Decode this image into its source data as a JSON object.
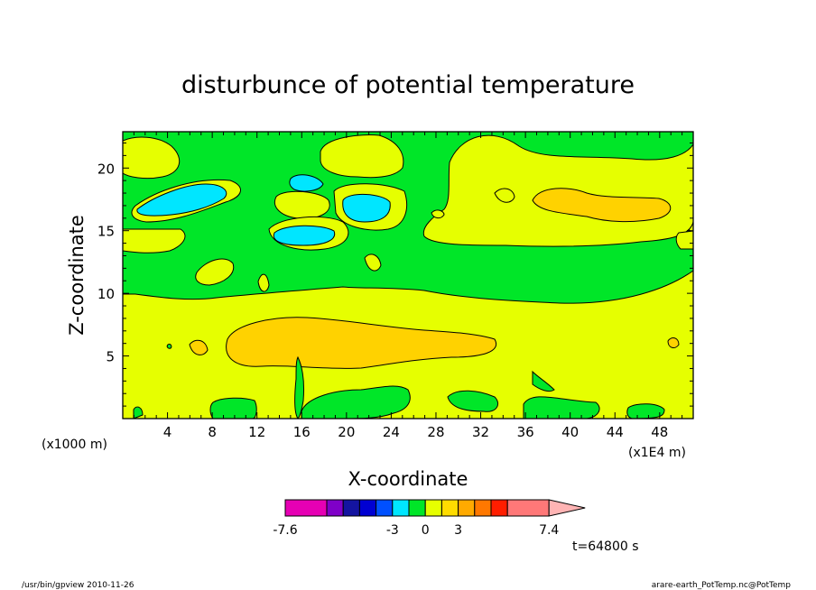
{
  "chart_data": {
    "type": "heatmap",
    "title": "disturbunce of potential temperature",
    "xlabel": "X-coordinate",
    "ylabel": "Z-coordinate",
    "x_unit": "(x1E4 m)",
    "y_unit": "(x1000 m)",
    "xlim": [
      0,
      51
    ],
    "ylim": [
      0,
      22.9
    ],
    "x_ticks": [
      4,
      8,
      12,
      16,
      20,
      24,
      28,
      32,
      36,
      40,
      44,
      48
    ],
    "y_ticks": [
      5,
      10,
      15,
      20
    ],
    "time_label": "t=64800 s",
    "colorbar": {
      "colors": [
        "#e600b4",
        "#7f00c8",
        "#1414a0",
        "#0000d2",
        "#0050ff",
        "#00e6ff",
        "#00e628",
        "#e6ff00",
        "#ffdc00",
        "#ffaa00",
        "#ff7800",
        "#ff1e00",
        "#ff7878",
        "#ffb4b4"
      ],
      "labels": [
        {
          "value": "-7.6",
          "index": 0
        },
        {
          "value": "-3",
          "index": 5
        },
        {
          "value": "0",
          "index": 7
        },
        {
          "value": "3",
          "index": 9
        },
        {
          "value": "7.4",
          "index": 13
        }
      ]
    },
    "regions": {
      "background": "#e6ff00",
      "green": "#00e628",
      "cyan": "#00e6ff",
      "orange": "#ffd200"
    }
  },
  "footer": {
    "left": "/usr/bin/gpview   2010-11-26",
    "right": "arare-earth_PotTemp.nc@PotTemp"
  }
}
